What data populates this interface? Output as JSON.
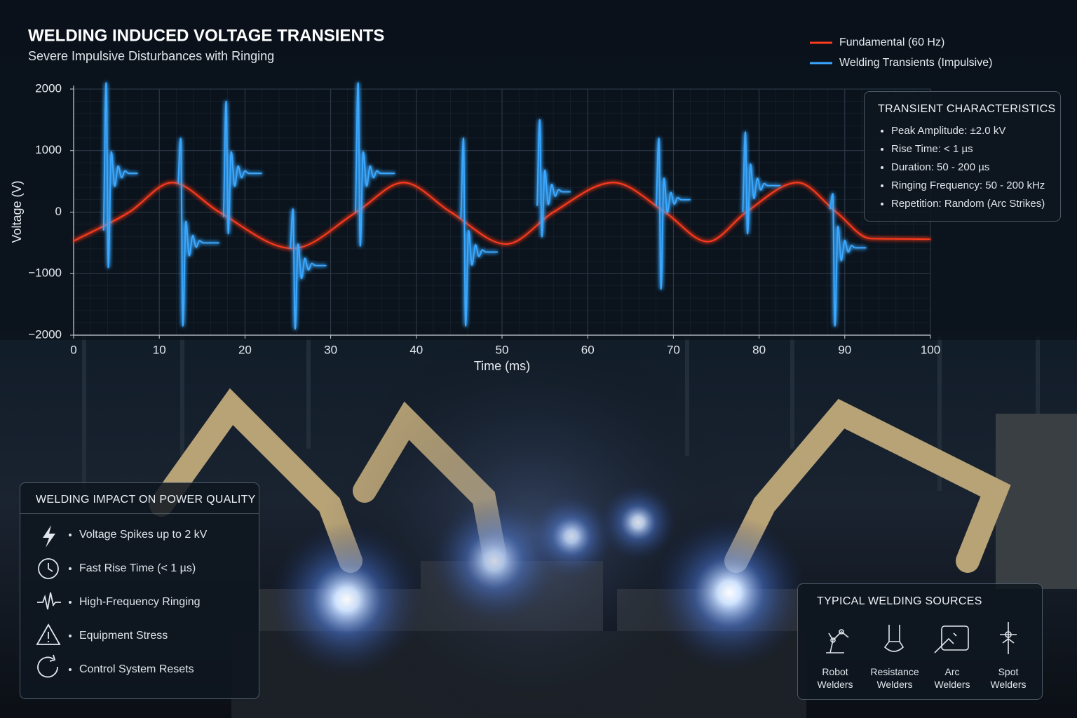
{
  "chart_data": {
    "type": "line",
    "title": "WELDING INDUCED VOLTAGE TRANSIENTS",
    "subtitle": "Severe Impulsive Disturbances with Ringing",
    "x_label": "Time (ms)",
    "y_label": "Voltage (V)",
    "xlim": [
      0,
      100
    ],
    "ylim": [
      -2000,
      2000
    ],
    "xticks": [
      0,
      10,
      20,
      30,
      40,
      50,
      60,
      70,
      80,
      90,
      100
    ],
    "yticks": [
      2000,
      1000,
      0,
      {
        "value": -1000,
        "label": "−1000"
      },
      {
        "value": -2000,
        "label": "−2000"
      }
    ],
    "grid": true,
    "legend": "top-right",
    "series": [
      {
        "name": "Fundamental (60 Hz)",
        "color": "#ff3b1f",
        "x": [
          0,
          6.5,
          11.5,
          17,
          25.6,
          33,
          38.5,
          44,
          50.5,
          56,
          63,
          69,
          74,
          78.5,
          84.5,
          89,
          93,
          100
        ],
        "values": [
          -470,
          0,
          480,
          0,
          -590,
          0,
          480,
          0,
          -520,
          0,
          480,
          0,
          -480,
          0,
          480,
          0,
          -430,
          -440
        ]
      },
      {
        "name": "Welding Transients (Impulsive)",
        "color": "#3aa8ff",
        "x": [
          3.5,
          3.8,
          4.05,
          4.4,
          4.8,
          5.2,
          5.6,
          6.0,
          6.4,
          7.5,
          null,
          12.2,
          12.5,
          12.75,
          13.1,
          13.5,
          13.9,
          14.3,
          14.7,
          15.1,
          17.0,
          null,
          17.5,
          17.8,
          18.05,
          18.4,
          18.8,
          19.2,
          19.6,
          20.0,
          20.4,
          22.0,
          null,
          25.3,
          25.6,
          25.85,
          26.2,
          26.6,
          27.0,
          27.4,
          27.8,
          28.2,
          29.5,
          null,
          32.9,
          33.2,
          33.45,
          33.8,
          34.2,
          34.6,
          35.0,
          35.4,
          35.8,
          37.5,
          null,
          45.2,
          45.5,
          45.75,
          46.1,
          46.5,
          46.9,
          47.3,
          47.7,
          48.1,
          49.5,
          null,
          54.1,
          54.4,
          54.65,
          55.0,
          55.4,
          55.8,
          56.2,
          56.6,
          57.0,
          58.0,
          null,
          68.0,
          68.3,
          68.55,
          68.9,
          69.3,
          69.7,
          70.1,
          70.5,
          70.9,
          72.0,
          null,
          78.1,
          78.4,
          78.65,
          79.0,
          79.4,
          79.8,
          80.2,
          80.6,
          81.0,
          82.5,
          null,
          88.3,
          88.6,
          88.85,
          89.2,
          89.6,
          90.0,
          90.4,
          90.8,
          91.2,
          92.5
        ],
        "values": [
          -300,
          2100,
          -900,
          980,
          420,
          750,
          560,
          670,
          630,
          630,
          null,
          470,
          1200,
          -1850,
          -150,
          -710,
          -380,
          -570,
          -465,
          -500,
          -500,
          null,
          -80,
          1800,
          -350,
          980,
          420,
          750,
          560,
          670,
          630,
          630,
          null,
          -590,
          50,
          -1900,
          -520,
          -1080,
          -750,
          -940,
          -835,
          -870,
          -870,
          null,
          0,
          2100,
          -550,
          980,
          420,
          750,
          560,
          670,
          630,
          630,
          null,
          -100,
          1200,
          -1850,
          -300,
          -860,
          -530,
          -720,
          -615,
          -650,
          -650,
          null,
          100,
          1500,
          -400,
          680,
          120,
          450,
          260,
          365,
          330,
          330,
          null,
          100,
          1200,
          -1250,
          550,
          -10,
          320,
          130,
          235,
          200,
          200,
          null,
          0,
          1300,
          -350,
          780,
          220,
          550,
          360,
          465,
          430,
          430,
          null,
          50,
          300,
          -1850,
          -230,
          -790,
          -460,
          -650,
          -545,
          -580,
          -580
        ]
      }
    ]
  },
  "characteristics": {
    "title": "TRANSIENT CHARACTERISTICS",
    "items": [
      "Peak Amplitude: ±2.0 kV",
      "Rise Time: < 1 µs",
      "Duration: 50 - 200 µs",
      "Ringing Frequency: 50 - 200 kHz",
      "Repetition: Random (Arc Strikes)"
    ]
  },
  "impact": {
    "title": "WELDING IMPACT ON POWER QUALITY",
    "items": [
      "Voltage Spikes up to 2 kV",
      "Fast Rise Time (< 1 µs)",
      "High-Frequency Ringing",
      "Equipment Stress",
      "Control System Resets"
    ]
  },
  "sources": {
    "title": "TYPICAL WELDING SOURCES",
    "items": [
      "Robot Welders",
      "Resistance Welders",
      "Arc Welders",
      "Spot Welders"
    ]
  }
}
